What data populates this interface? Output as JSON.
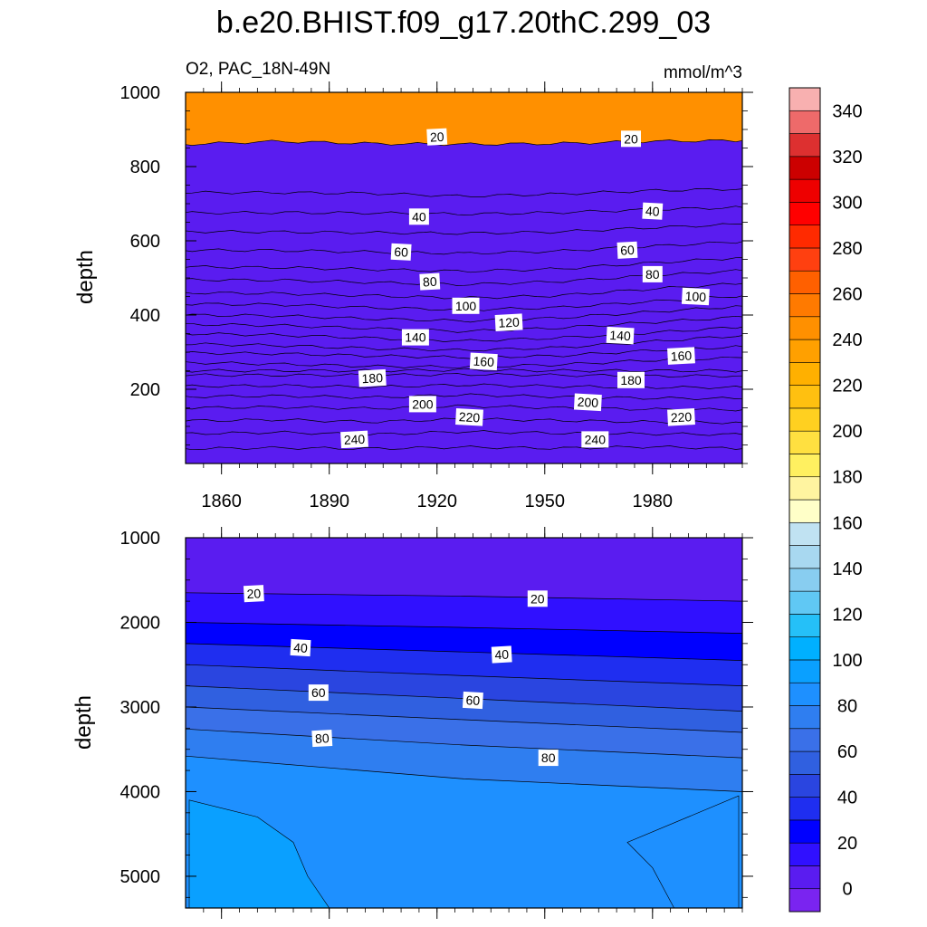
{
  "chart_data": {
    "type": "contour",
    "title": "b.e20.BHIST.f09_g17.20thC.299_03",
    "variable_label": "O2, PAC_18N-49N",
    "units_label": "mmol/m^3",
    "ylabel": "depth",
    "upper_panel": {
      "xlim": [
        1850,
        2005
      ],
      "ylim": [
        1000,
        0
      ],
      "x_ticks": [
        "1860",
        "1890",
        "1920",
        "1950",
        "1980"
      ],
      "x_tick_values": [
        1860,
        1890,
        1920,
        1950,
        1980
      ],
      "y_ticks": [
        "200",
        "400",
        "600",
        "800",
        "1000"
      ],
      "y_tick_values": [
        200,
        400,
        600,
        800,
        1000
      ],
      "boundaries": [
        {
          "level": 240,
          "depth": [
            40,
            42,
            40,
            44,
            41,
            45,
            40
          ]
        },
        {
          "level": 230,
          "depth": [
            80,
            84,
            78,
            86,
            82,
            80,
            78
          ]
        },
        {
          "level": 220,
          "depth": [
            115,
            118,
            112,
            120,
            116,
            112,
            110
          ]
        },
        {
          "level": 210,
          "depth": [
            150,
            152,
            148,
            155,
            150,
            146,
            145
          ]
        },
        {
          "level": 200,
          "depth": [
            180,
            182,
            178,
            185,
            180,
            176,
            175
          ]
        },
        {
          "level": 190,
          "depth": [
            208,
            210,
            206,
            212,
            208,
            205,
            205
          ]
        },
        {
          "level": 180,
          "depth": [
            238,
            238,
            238,
            240,
            238,
            236,
            236
          ]
        },
        {
          "level": 170,
          "depth": [
            250,
            250,
            250,
            252,
            250,
            250,
            250
          ]
        },
        {
          "level": 160,
          "depth": [
            272,
            268,
            262,
            260,
            266,
            278,
            285
          ]
        },
        {
          "level": 150,
          "depth": [
            298,
            296,
            290,
            286,
            290,
            304,
            315
          ]
        },
        {
          "level": 140,
          "depth": [
            322,
            318,
            310,
            305,
            312,
            328,
            345
          ]
        },
        {
          "level": 130,
          "depth": [
            350,
            346,
            338,
            330,
            338,
            352,
            368
          ]
        },
        {
          "level": 120,
          "depth": [
            375,
            372,
            364,
            356,
            365,
            380,
            395
          ]
        },
        {
          "level": 110,
          "depth": [
            400,
            398,
            390,
            384,
            392,
            408,
            424
          ]
        },
        {
          "level": 100,
          "depth": [
            430,
            428,
            420,
            414,
            420,
            436,
            452
          ]
        },
        {
          "level": 90,
          "depth": [
            460,
            458,
            452,
            446,
            452,
            470,
            485
          ]
        },
        {
          "level": 80,
          "depth": [
            495,
            494,
            488,
            482,
            490,
            506,
            520
          ]
        },
        {
          "level": 70,
          "depth": [
            530,
            528,
            523,
            518,
            524,
            540,
            555
          ]
        },
        {
          "level": 60,
          "depth": [
            575,
            574,
            570,
            566,
            572,
            585,
            598
          ]
        },
        {
          "level": 50,
          "depth": [
            625,
            624,
            622,
            620,
            624,
            635,
            645
          ]
        },
        {
          "level": 40,
          "depth": [
            675,
            676,
            675,
            672,
            676,
            684,
            690
          ]
        },
        {
          "level": 30,
          "depth": [
            730,
            730,
            728,
            720,
            726,
            735,
            740
          ]
        },
        {
          "level": 20,
          "depth": [
            860,
            868,
            862,
            860,
            862,
            868,
            870
          ]
        }
      ],
      "labels": [
        {
          "text": "240",
          "x": 1897,
          "depth": 65
        },
        {
          "text": "240",
          "x": 1964,
          "depth": 65
        },
        {
          "text": "220",
          "x": 1929,
          "depth": 125
        },
        {
          "text": "220",
          "x": 1988,
          "depth": 125
        },
        {
          "text": "200",
          "x": 1916,
          "depth": 160
        },
        {
          "text": "200",
          "x": 1962,
          "depth": 165
        },
        {
          "text": "180",
          "x": 1902,
          "depth": 230
        },
        {
          "text": "180",
          "x": 1974,
          "depth": 225
        },
        {
          "text": "160",
          "x": 1933,
          "depth": 275
        },
        {
          "text": "160",
          "x": 1988,
          "depth": 290
        },
        {
          "text": "140",
          "x": 1914,
          "depth": 340
        },
        {
          "text": "140",
          "x": 1971,
          "depth": 345
        },
        {
          "text": "120",
          "x": 1940,
          "depth": 380
        },
        {
          "text": "100",
          "x": 1928,
          "depth": 425
        },
        {
          "text": "100",
          "x": 1992,
          "depth": 450
        },
        {
          "text": "80",
          "x": 1918,
          "depth": 490
        },
        {
          "text": "80",
          "x": 1980,
          "depth": 510
        },
        {
          "text": "60",
          "x": 1910,
          "depth": 570
        },
        {
          "text": "60",
          "x": 1973,
          "depth": 575
        },
        {
          "text": "40",
          "x": 1915,
          "depth": 665
        },
        {
          "text": "40",
          "x": 1980,
          "depth": 680
        },
        {
          "text": "20",
          "x": 1920,
          "depth": 880
        },
        {
          "text": "20",
          "x": 1974,
          "depth": 875
        }
      ]
    },
    "lower_panel": {
      "xlim": [
        1850,
        2005
      ],
      "ylim": [
        1000,
        5375
      ],
      "y_ticks": [
        "1000",
        "2000",
        "3000",
        "4000",
        "5000"
      ],
      "y_tick_values": [
        1000,
        2000,
        3000,
        4000,
        5000
      ],
      "boundaries": [
        {
          "level": 20,
          "depth": [
            1650,
            1690,
            1750
          ]
        },
        {
          "level": 30,
          "depth": [
            2000,
            2060,
            2130
          ]
        },
        {
          "level": 40,
          "depth": [
            2250,
            2350,
            2450
          ]
        },
        {
          "level": 50,
          "depth": [
            2500,
            2630,
            2750
          ]
        },
        {
          "level": 60,
          "depth": [
            2750,
            2900,
            3050
          ]
        },
        {
          "level": 70,
          "depth": [
            3000,
            3150,
            3300
          ]
        },
        {
          "level": 80,
          "depth": [
            3260,
            3450,
            3600
          ]
        },
        {
          "level": 90,
          "depth": [
            3580,
            3850,
            4000
          ]
        }
      ],
      "region_100": [
        [
          1851,
          4100
        ],
        [
          1870,
          4300
        ],
        [
          1880,
          4600
        ],
        [
          1884,
          5000
        ],
        [
          1890,
          5375
        ],
        [
          1851,
          5375
        ]
      ],
      "region_100_right": [
        [
          1973,
          4600
        ],
        [
          1980,
          4900
        ],
        [
          1986,
          5375
        ],
        [
          2004,
          5375
        ],
        [
          2004,
          4050
        ]
      ],
      "labels": [
        {
          "text": "20",
          "x": 1869,
          "depth": 1660
        },
        {
          "text": "20",
          "x": 1948,
          "depth": 1720
        },
        {
          "text": "40",
          "x": 1882,
          "depth": 2300
        },
        {
          "text": "40",
          "x": 1938,
          "depth": 2380
        },
        {
          "text": "60",
          "x": 1887,
          "depth": 2830
        },
        {
          "text": "60",
          "x": 1930,
          "depth": 2920
        },
        {
          "text": "80",
          "x": 1888,
          "depth": 3370
        },
        {
          "text": "80",
          "x": 1951,
          "depth": 3600
        }
      ]
    },
    "colorbar": {
      "levels": [
        0,
        10,
        20,
        30,
        40,
        50,
        60,
        70,
        80,
        90,
        100,
        110,
        120,
        130,
        140,
        150,
        160,
        170,
        180,
        190,
        200,
        210,
        220,
        230,
        240,
        250,
        260,
        270,
        280,
        290,
        300,
        310,
        320,
        330,
        340,
        350
      ],
      "tick_labels": [
        "0",
        "20",
        "40",
        "60",
        "80",
        "100",
        "120",
        "140",
        "160",
        "180",
        "200",
        "220",
        "240",
        "260",
        "280",
        "300",
        "320",
        "340"
      ],
      "colors": [
        "#7a24f0",
        "#5a1cf0",
        "#3010ff",
        "#0000ff",
        "#1f2ef0",
        "#2a45e0",
        "#3060e0",
        "#3a70e8",
        "#2f7ef0",
        "#1e90ff",
        "#0aa0ff",
        "#00b0ff",
        "#25c0f8",
        "#60c8f4",
        "#88cdf0",
        "#a8d8f0",
        "#c0e2f2",
        "#ffffc8",
        "#fff4a0",
        "#fff060",
        "#ffe040",
        "#ffd020",
        "#ffc010",
        "#ffb000",
        "#ffa000",
        "#ff9000",
        "#ff7a00",
        "#ff6000",
        "#ff4010",
        "#ff2a00",
        "#ff0000",
        "#ee0000",
        "#cc0000",
        "#dd3030",
        "#ee6a6a",
        "#f8b0b0"
      ]
    }
  }
}
